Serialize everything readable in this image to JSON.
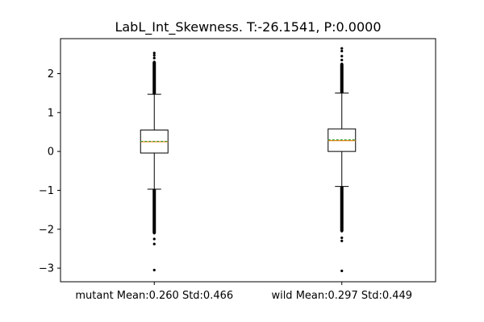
{
  "chart_data": {
    "type": "box",
    "title": "LabL_Int_Skewness. T:-26.1541, P:0.0000",
    "xlabel": "",
    "ylabel": "",
    "ylim": [
      -3.35,
      2.9
    ],
    "yticks": [
      -3,
      -2,
      -1,
      0,
      1,
      2
    ],
    "ytick_labels": [
      "−3",
      "−2",
      "−1",
      "0",
      "1",
      "2"
    ],
    "grid": false,
    "legend": "none",
    "categories": [
      "mutant Mean:0.260 Std:0.466",
      "wild Mean:0.297 Std:0.449"
    ],
    "boxes": [
      {
        "label": "mutant Mean:0.260 Std:0.466",
        "whisker_low": -0.97,
        "q1": -0.04,
        "median": 0.25,
        "mean": 0.26,
        "q3": 0.55,
        "whisker_high": 1.47,
        "outliers_high": [
          1.52,
          1.6,
          1.7,
          1.8,
          1.9,
          2.0,
          2.1,
          2.2,
          2.3,
          2.4,
          2.47,
          2.53
        ],
        "outliers_low": [
          -1.02,
          -1.1,
          -1.2,
          -1.3,
          -1.4,
          -1.5,
          -1.6,
          -1.7,
          -1.8,
          -1.9,
          -2.0,
          -2.1,
          -2.25,
          -2.38,
          -3.05
        ]
      },
      {
        "label": "wild Mean:0.297 Std:0.449",
        "whisker_low": -0.9,
        "q1": 0.0,
        "median": 0.28,
        "mean": 0.297,
        "q3": 0.58,
        "whisker_high": 1.5,
        "outliers_high": [
          1.55,
          1.65,
          1.75,
          1.85,
          1.95,
          2.05,
          2.15,
          2.25,
          2.35,
          2.45,
          2.58,
          2.65
        ],
        "outliers_low": [
          -0.95,
          -1.05,
          -1.15,
          -1.25,
          -1.35,
          -1.45,
          -1.55,
          -1.65,
          -1.75,
          -1.85,
          -1.95,
          -2.05,
          -2.22,
          -2.3,
          -3.07
        ]
      }
    ],
    "colors": {
      "box": "#000000",
      "median": "#ff7f0e",
      "mean": "#2ca02c",
      "outlier": "#000000"
    }
  }
}
